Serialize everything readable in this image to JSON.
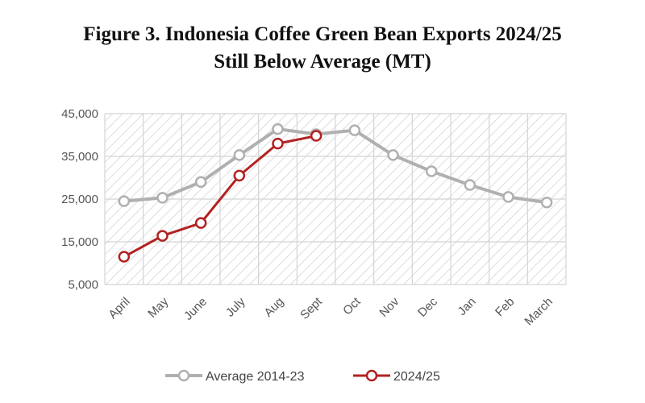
{
  "title_line1": "Figure 3. Indonesia Coffee Green Bean Exports 2024/25",
  "title_line2": "Still Below Average (MT)",
  "colors": {
    "average": "#b0b0b0",
    "current": "#b22222",
    "grid": "#d4d4d4",
    "hatch": "#cfcfcf"
  },
  "chart_data": {
    "type": "line",
    "categories": [
      "April",
      "May",
      "June",
      "July",
      "Aug",
      "Sept",
      "Oct",
      "Nov",
      "Dec",
      "Jan",
      "Feb",
      "March"
    ],
    "ylim": [
      5000,
      45000
    ],
    "yticks": [
      5000,
      15000,
      25000,
      35000,
      45000
    ],
    "ytick_labels": [
      "5,000",
      "15,000",
      "25,000",
      "35,000",
      "45,000"
    ],
    "grid": true,
    "legend_position": "bottom",
    "series": [
      {
        "name": "Average 2014-23",
        "color": "#b0b0b0",
        "values": [
          24500,
          25300,
          29000,
          35300,
          41400,
          40200,
          41100,
          35300,
          31500,
          28300,
          25500,
          24200
        ]
      },
      {
        "name": "2024/25",
        "color": "#b22222",
        "values": [
          11500,
          16400,
          19400,
          30500,
          38000,
          39800,
          null,
          null,
          null,
          null,
          null,
          null
        ]
      }
    ]
  }
}
